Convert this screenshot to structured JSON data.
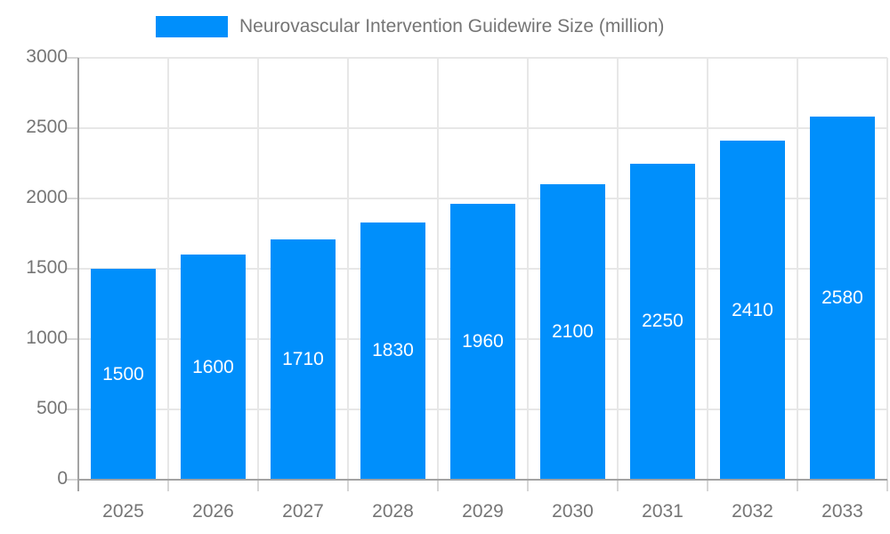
{
  "chart_data": {
    "type": "bar",
    "title": "Neurovascular Intervention Guidewire Size (million)",
    "legend_position": "top",
    "categories": [
      "2025",
      "2026",
      "2027",
      "2028",
      "2029",
      "2030",
      "2031",
      "2032",
      "2033"
    ],
    "series": [
      {
        "name": "Neurovascular Intervention Guidewire Size (million)",
        "values": [
          1500,
          1600,
          1710,
          1830,
          1960,
          2100,
          2250,
          2410,
          2580
        ]
      }
    ],
    "xlabel": "",
    "ylabel": "",
    "ylim": [
      0,
      3000
    ],
    "yticks": [
      0,
      500,
      1000,
      1500,
      2000,
      2500,
      3000
    ],
    "grid": true,
    "bar_color": "#008FFB",
    "bar_label_color": "#ffffff",
    "axis_text_color": "#757575",
    "grid_color": "#e7e7e7",
    "tick_color": "#d6d6d6",
    "axis_line_color": "#a3a3a3"
  }
}
